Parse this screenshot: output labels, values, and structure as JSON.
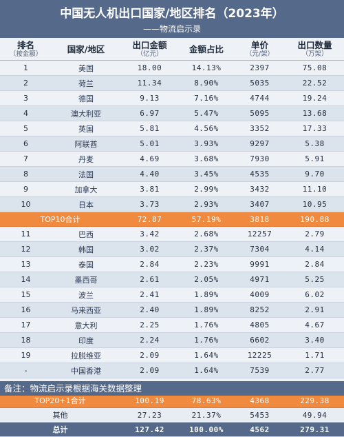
{
  "header": {
    "title": "中国无人机出口国家/地区排名（2023年）",
    "subtitle": "——物流启示录"
  },
  "columns": [
    {
      "main": "排名",
      "sub": "（按金额）"
    },
    {
      "main": "国家/地区",
      "sub": ""
    },
    {
      "main": "出口金额",
      "sub": "（亿元）"
    },
    {
      "main": "金额占比",
      "sub": ""
    },
    {
      "main": "单价",
      "sub": "（元/架）"
    },
    {
      "main": "出口数量",
      "sub": "（万架）"
    }
  ],
  "rows_top10": [
    [
      "1",
      "美国",
      "18.00",
      "14.13%",
      "2397",
      "75.08"
    ],
    [
      "2",
      "荷兰",
      "11.34",
      "8.90%",
      "5035",
      "22.52"
    ],
    [
      "3",
      "德国",
      "9.13",
      "7.16%",
      "4744",
      "19.24"
    ],
    [
      "4",
      "澳大利亚",
      "6.97",
      "5.47%",
      "5095",
      "13.68"
    ],
    [
      "5",
      "英国",
      "5.81",
      "4.56%",
      "3352",
      "17.33"
    ],
    [
      "6",
      "阿联酋",
      "5.01",
      "3.93%",
      "9297",
      "5.38"
    ],
    [
      "7",
      "丹麦",
      "4.69",
      "3.68%",
      "7930",
      "5.91"
    ],
    [
      "8",
      "法国",
      "4.40",
      "3.45%",
      "4535",
      "9.70"
    ],
    [
      "9",
      "加拿大",
      "3.81",
      "2.99%",
      "3432",
      "11.10"
    ],
    [
      "10",
      "日本",
      "3.73",
      "2.93%",
      "3407",
      "10.95"
    ]
  ],
  "top10_total": [
    "TOP10合计",
    "72.87",
    "57.19%",
    "3818",
    "190.88"
  ],
  "rows_next": [
    [
      "11",
      "巴西",
      "3.42",
      "2.68%",
      "12257",
      "2.79"
    ],
    [
      "12",
      "韩国",
      "3.02",
      "2.37%",
      "7304",
      "4.14"
    ],
    [
      "13",
      "泰国",
      "2.84",
      "2.23%",
      "9991",
      "2.84"
    ],
    [
      "14",
      "墨西哥",
      "2.61",
      "2.05%",
      "4971",
      "5.25"
    ],
    [
      "15",
      "波兰",
      "2.41",
      "1.89%",
      "4009",
      "6.02"
    ],
    [
      "16",
      "马来西亚",
      "2.40",
      "1.89%",
      "8252",
      "2.91"
    ],
    [
      "17",
      "意大利",
      "2.25",
      "1.76%",
      "4805",
      "4.67"
    ],
    [
      "18",
      "印度",
      "2.24",
      "1.76%",
      "6602",
      "3.40"
    ],
    [
      "19",
      "拉脱维亚",
      "2.09",
      "1.64%",
      "12225",
      "1.71"
    ],
    [
      "-",
      "中国香港",
      "2.09",
      "1.64%",
      "7539",
      "2.77"
    ],
    [
      "20",
      "越南",
      "1.94",
      "1.52%",
      "9732",
      "1.99"
    ]
  ],
  "top20_total": [
    "TOP20+1合计",
    "100.19",
    "78.63%",
    "4368",
    "229.38"
  ],
  "other_row": [
    "其他",
    "27.23",
    "21.37%",
    "5453",
    "49.94"
  ],
  "sum_row": [
    "总计",
    "127.42",
    "100.00%",
    "4562",
    "279.31"
  ],
  "footer": {
    "note": "备注：物流启示录根据海关数据整理"
  },
  "colors": {
    "header_bg": "#556a8a",
    "total_row_bg": "#ef8a3e",
    "row_light": "#eef2f6",
    "row_dark": "#dbe3ec"
  }
}
